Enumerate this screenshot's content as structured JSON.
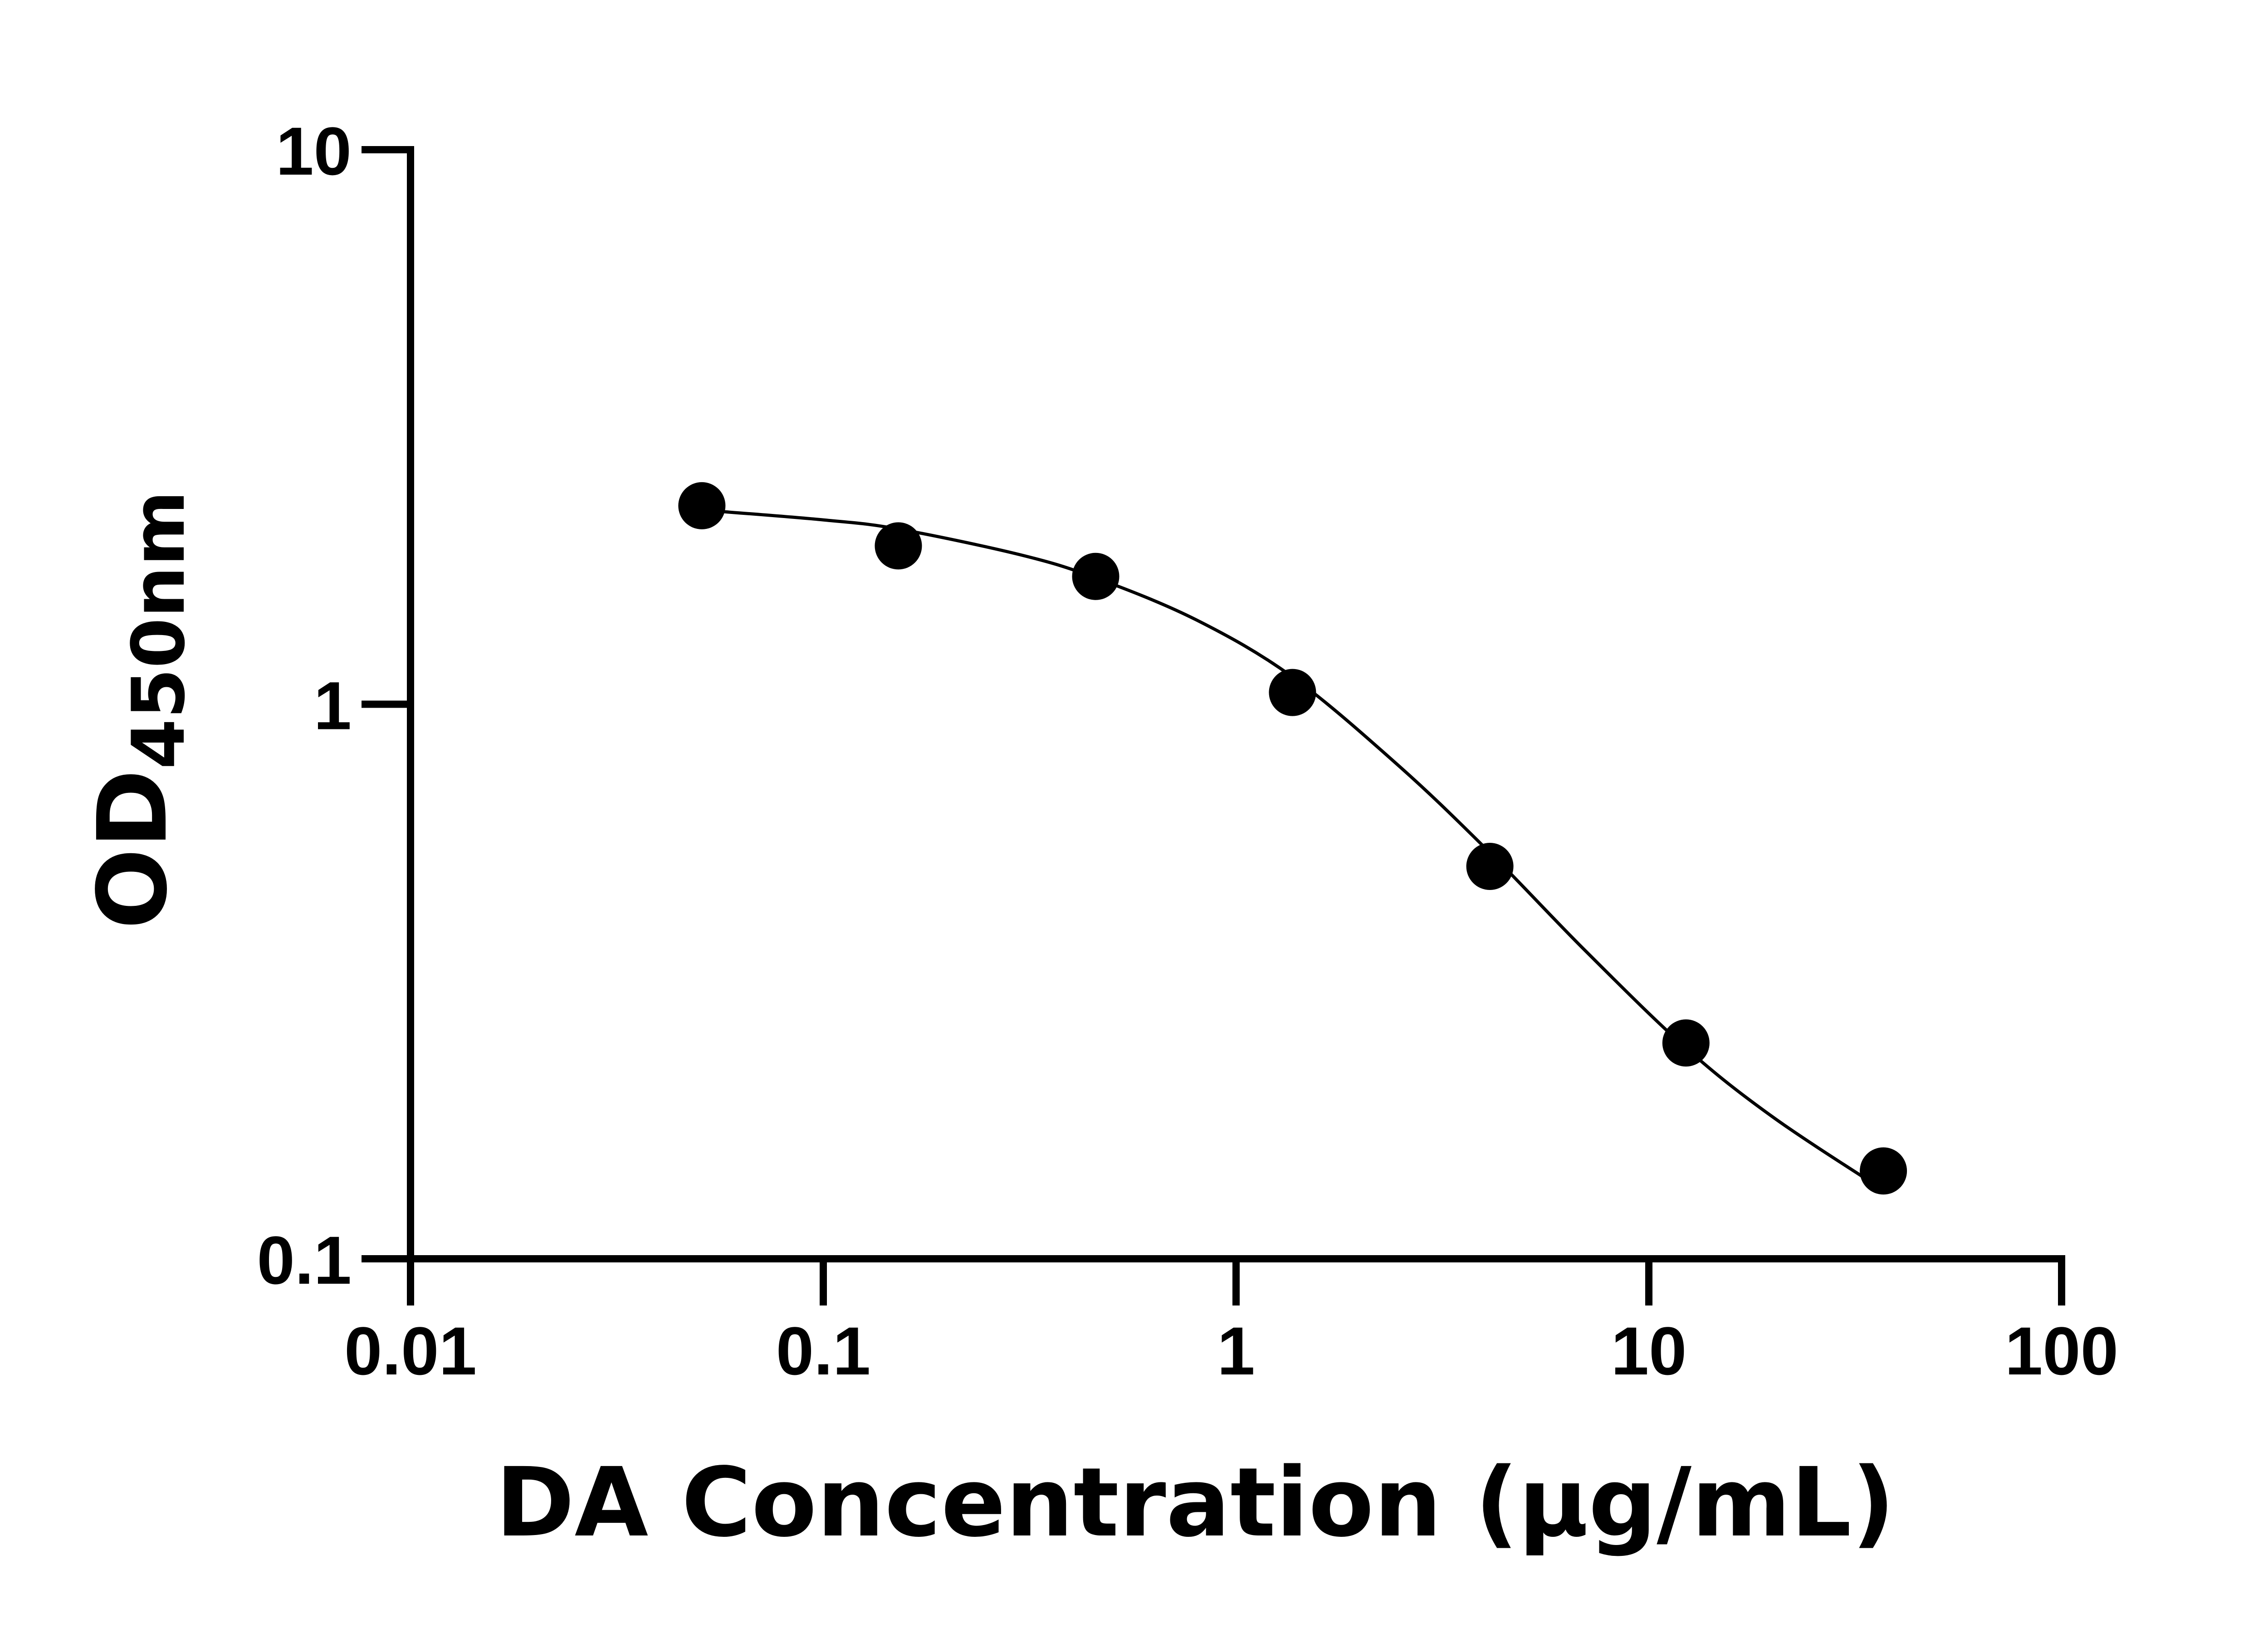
{
  "chart_data": {
    "type": "scatter",
    "title": "",
    "xlabel": "DA Concentration  (µg/mL)",
    "ylabel_main": "OD",
    "ylabel_sub": "450nm",
    "x_scale": "log",
    "y_scale": "log",
    "xlim": [
      0.01,
      100
    ],
    "ylim": [
      0.1,
      10
    ],
    "x_ticks": [
      0.01,
      0.1,
      1,
      10,
      100
    ],
    "x_tick_labels": [
      "0.01",
      "0.1",
      "1",
      "10",
      "100"
    ],
    "y_ticks": [
      0.1,
      1,
      10
    ],
    "y_tick_labels": [
      "0.1",
      "1",
      "10"
    ],
    "grid": false,
    "legend": "none",
    "series": [
      {
        "x": [
          0.0508,
          0.152,
          0.457,
          1.37,
          4.12,
          12.3,
          37.0
        ],
        "y": [
          2.28,
          1.93,
          1.7,
          1.05,
          0.51,
          0.245,
          0.144
        ],
        "marker": "filled-circle",
        "color": "#000000"
      }
    ],
    "fit_curve": {
      "type": "4PL",
      "x": [
        0.0508,
        0.1,
        0.152,
        0.3,
        0.457,
        0.8,
        1.37,
        2.5,
        4.12,
        7.0,
        12.3,
        20.0,
        37.0
      ],
      "y": [
        2.24,
        2.15,
        2.07,
        1.86,
        1.69,
        1.42,
        1.12,
        0.77,
        0.54,
        0.36,
        0.24,
        0.18,
        0.133
      ],
      "color": "#000000"
    }
  }
}
